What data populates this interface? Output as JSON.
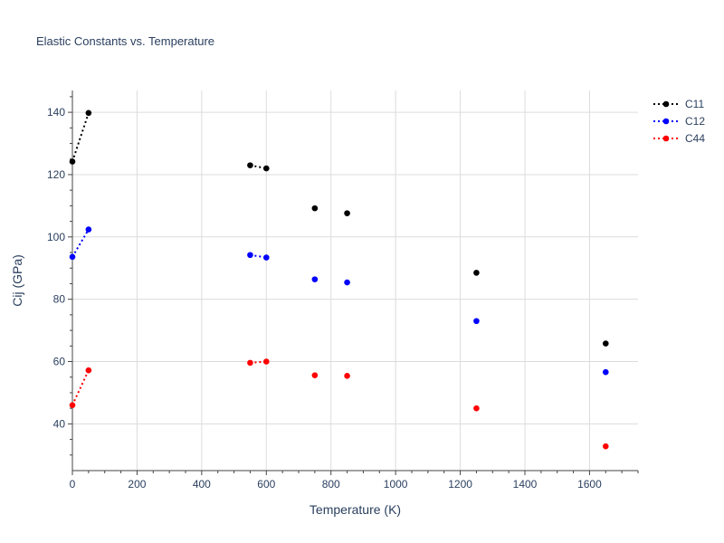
{
  "chart_data": {
    "type": "scatter",
    "title": "Elastic Constants vs. Temperature",
    "xlabel": "Temperature (K)",
    "ylabel": "Cij (GPa)",
    "xlim": [
      0,
      1750
    ],
    "ylim": [
      25,
      147
    ],
    "xticks": [
      0,
      200,
      400,
      600,
      800,
      1000,
      1200,
      1400,
      1600
    ],
    "yticks": [
      40,
      60,
      80,
      100,
      120,
      140
    ],
    "grid": true,
    "legend_position": "top-right",
    "series": [
      {
        "name": "C11",
        "color": "#000000",
        "points": [
          [
            0,
            124.2
          ],
          [
            50,
            139.8
          ],
          [
            550,
            123.0
          ],
          [
            600,
            122.0
          ],
          [
            750,
            109.2
          ],
          [
            850,
            107.6
          ],
          [
            1250,
            88.5
          ],
          [
            1650,
            65.8
          ]
        ],
        "line_segments": [
          [
            0,
            1
          ],
          [
            2,
            3
          ]
        ]
      },
      {
        "name": "C12",
        "color": "#0000ff",
        "points": [
          [
            0,
            93.6
          ],
          [
            50,
            102.4
          ],
          [
            550,
            94.2
          ],
          [
            600,
            93.4
          ],
          [
            750,
            86.4
          ],
          [
            850,
            85.4
          ],
          [
            1250,
            73.0
          ],
          [
            1650,
            56.6
          ]
        ],
        "line_segments": [
          [
            0,
            1
          ],
          [
            2,
            3
          ]
        ]
      },
      {
        "name": "C44",
        "color": "#ff0000",
        "points": [
          [
            0,
            46.0
          ],
          [
            50,
            57.2
          ],
          [
            550,
            59.6
          ],
          [
            600,
            60.0
          ],
          [
            750,
            55.6
          ],
          [
            850,
            55.4
          ],
          [
            1250,
            45.0
          ],
          [
            1650,
            32.8
          ]
        ],
        "line_segments": [
          [
            0,
            1
          ],
          [
            2,
            3
          ]
        ]
      }
    ]
  }
}
